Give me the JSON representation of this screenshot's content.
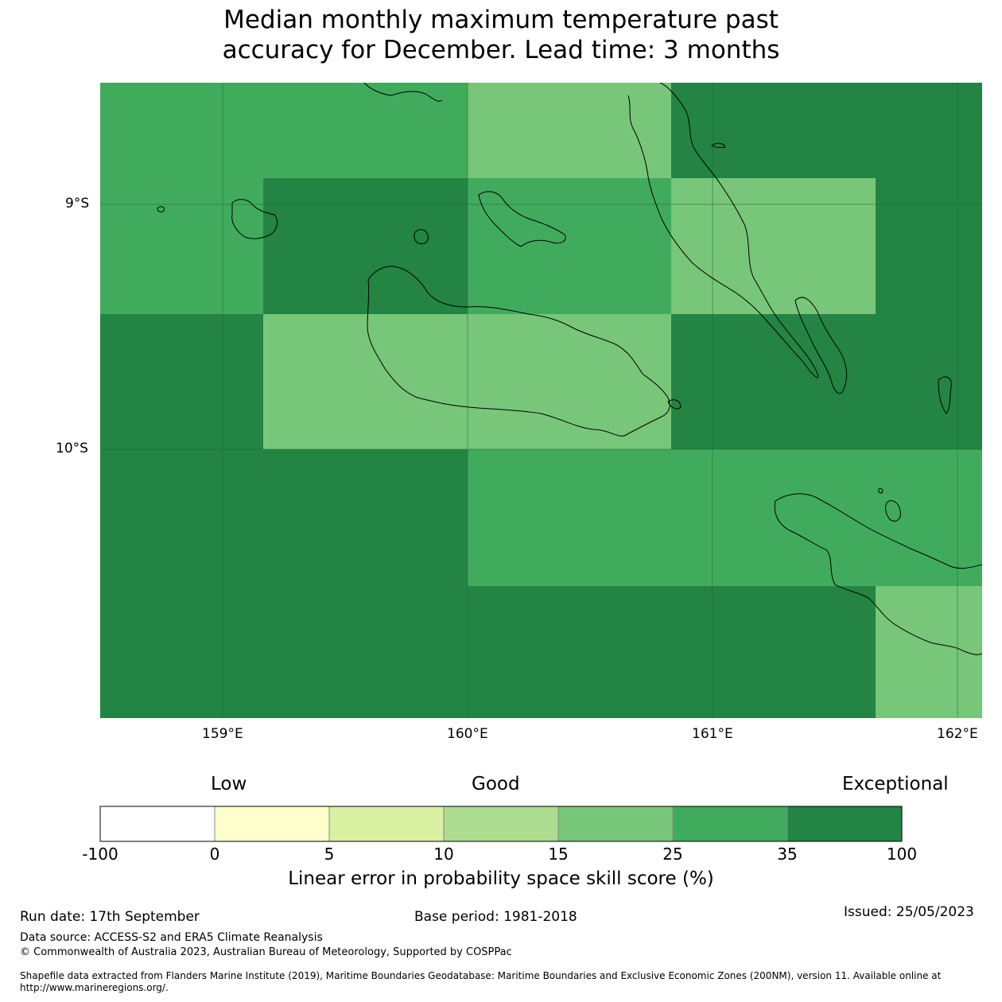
{
  "title_line1": "Median monthly maximum temperature past",
  "title_line2": "accuracy for December. Lead time: 3 months",
  "map": {
    "lon_range": [
      158.5,
      162.1
    ],
    "lat_range": [
      -11.1,
      -8.5
    ],
    "lon_ticks": [
      {
        "value": 159,
        "label": "159°E"
      },
      {
        "value": 160,
        "label": "160°E"
      },
      {
        "value": 161,
        "label": "161°E"
      },
      {
        "value": 162,
        "label": "162°E"
      }
    ],
    "lat_ticks": [
      {
        "value": -9,
        "label": "9°S"
      },
      {
        "value": -10,
        "label": "10°S"
      }
    ],
    "colors": {
      "c25_35": "#41ab5d",
      "c15_25": "#78c679",
      "c35_100": "#238443",
      "coast": "#000000",
      "grid": "#1a6b34"
    }
  },
  "colorbar": {
    "categories": {
      "low": "Low",
      "good": "Good",
      "exceptional": "Exceptional"
    },
    "segments": [
      {
        "from": "-100",
        "to": "0",
        "color": "#ffffff"
      },
      {
        "from": "0",
        "to": "5",
        "color": "#ffffcc"
      },
      {
        "from": "5",
        "to": "10",
        "color": "#d9f0a3"
      },
      {
        "from": "10",
        "to": "15",
        "color": "#addd8e"
      },
      {
        "from": "15",
        "to": "25",
        "color": "#78c679"
      },
      {
        "from": "25",
        "to": "35",
        "color": "#41ab5d"
      },
      {
        "from": "35",
        "to": "100",
        "color": "#238443"
      }
    ],
    "tick_labels": [
      "-100",
      "0",
      "5",
      "10",
      "15",
      "25",
      "35",
      "100"
    ],
    "title": "Linear error in probability space skill score (%)"
  },
  "footer": {
    "run_date": "Run date: 17th September",
    "base_period": "Base period: 1981-2018",
    "issued": "Issued: 25/05/2023",
    "data_source": "Data source: ACCESS-S2 and ERA5 Climate Reanalysis",
    "copyright": "© Commonwealth of Australia 2023, Australian Bureau of Meteorology, Supported by COSPPac",
    "shapefile": "Shapefile data extracted from Flanders Marine Institute (2019), Maritime Boundaries Geodatabase: Maritime Boundaries and Exclusive Economic Zones (200NM), version 11. Available online at http://www.marineregions.org/."
  }
}
